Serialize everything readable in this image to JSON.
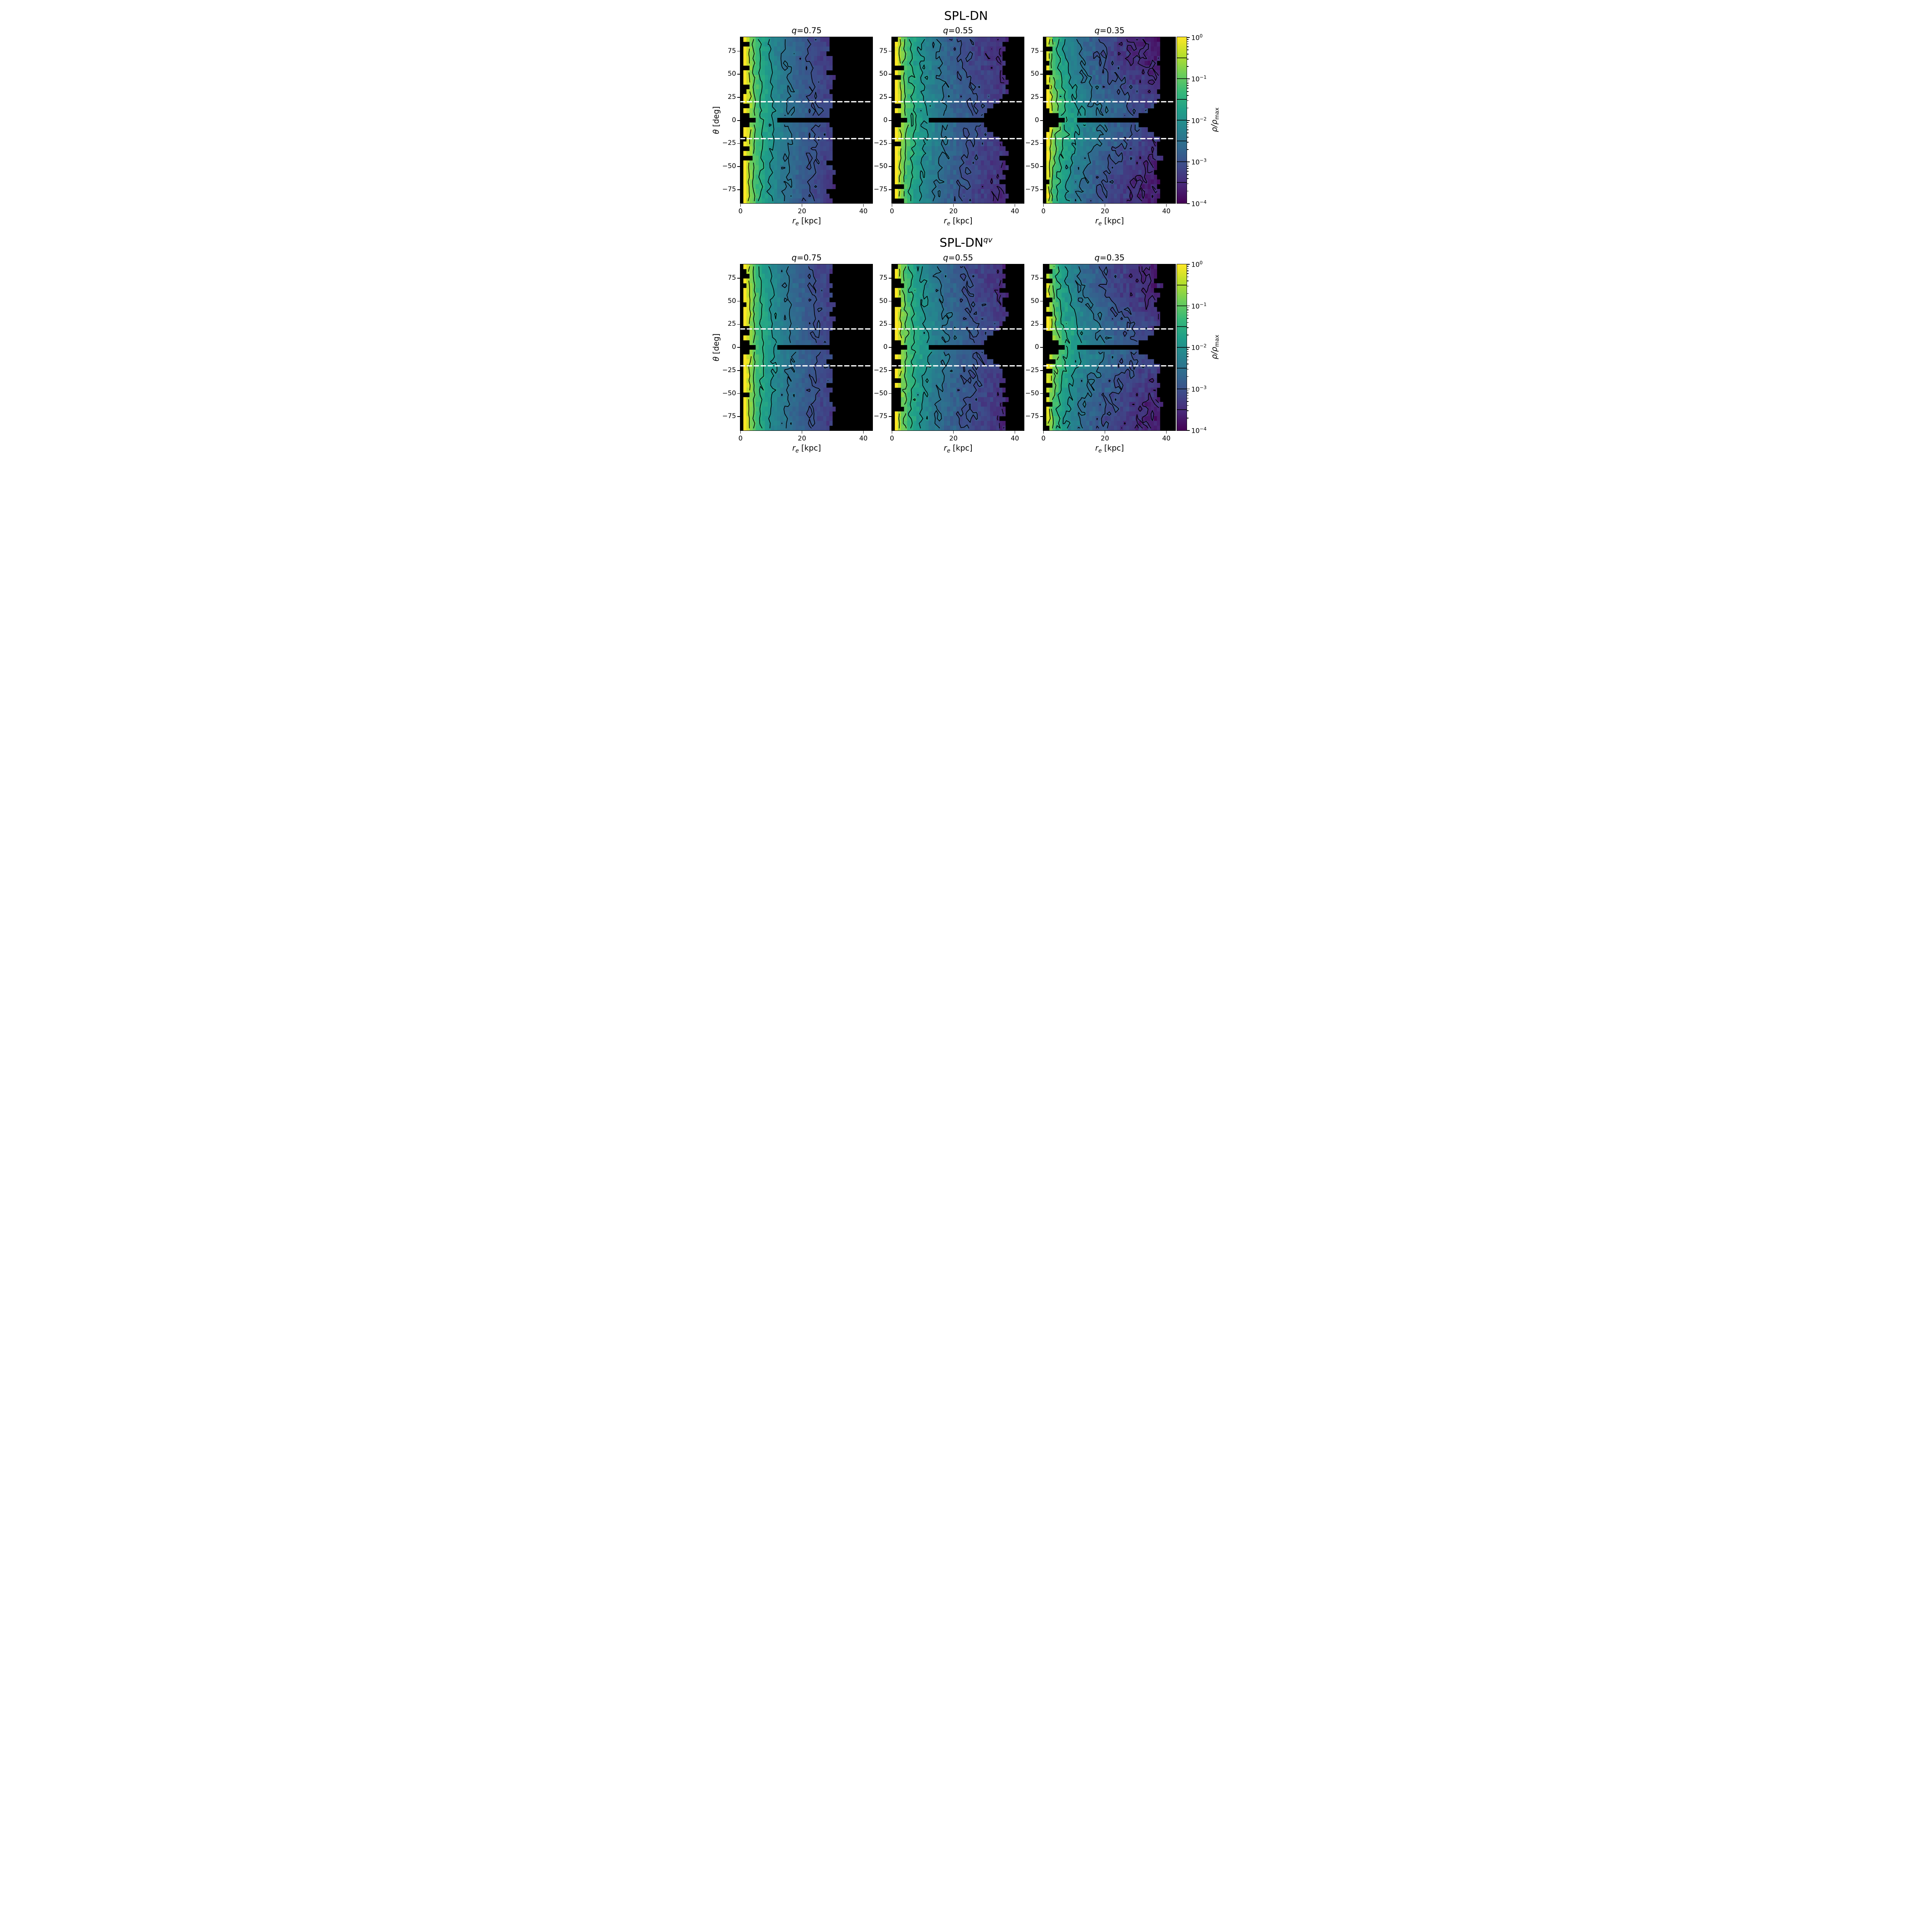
{
  "chart_data": {
    "type": "heatmap",
    "figure_titles": [
      {
        "base": "SPL-DN",
        "sup": ""
      },
      {
        "base": "SPL-DN",
        "sup": "qv"
      }
    ],
    "xlabel": {
      "sym": "r",
      "sub": "e",
      "rest": " [kpc]"
    },
    "ylabel": {
      "sym": "θ",
      "rest": " [deg]"
    },
    "colorbar": {
      "label_sym": "ρ/ρ",
      "label_sub": "max",
      "scale": "log",
      "vmin": 0.0001,
      "vmax": 1,
      "tick_base": "10",
      "tick_labels": [
        {
          "exp": 0,
          "text": "0"
        },
        {
          "exp": -1,
          "text": "−1"
        },
        {
          "exp": -2,
          "text": "−2"
        },
        {
          "exp": -3,
          "text": "−3"
        },
        {
          "exp": -4,
          "text": "−4"
        }
      ]
    },
    "x_range": [
      0,
      43
    ],
    "y_range": [
      -90,
      90
    ],
    "xticks": [
      {
        "v": 0,
        "label": "0"
      },
      {
        "v": 20,
        "label": "20"
      },
      {
        "v": 40,
        "label": "40"
      }
    ],
    "yticks": [
      {
        "v": 75,
        "label": "75"
      },
      {
        "v": 50,
        "label": "50"
      },
      {
        "v": 25,
        "label": "25"
      },
      {
        "v": 0,
        "label": "0"
      },
      {
        "v": -25,
        "label": "−25"
      },
      {
        "v": -50,
        "label": "−50"
      },
      {
        "v": -75,
        "label": "−75"
      }
    ],
    "dashed_lines_deg": [
      20,
      -20
    ],
    "contour_levels_log10": [
      -0.5,
      -1,
      -1.5,
      -2,
      -2.5,
      -3,
      -3.5
    ],
    "grid": {
      "nx": 43,
      "ny": 35
    },
    "viridis": [
      [
        68,
        1,
        84
      ],
      [
        72,
        40,
        120
      ],
      [
        62,
        74,
        137
      ],
      [
        49,
        104,
        142
      ],
      [
        38,
        130,
        142
      ],
      [
        31,
        158,
        137
      ],
      [
        53,
        183,
        121
      ],
      [
        109,
        205,
        89
      ],
      [
        180,
        222,
        44
      ],
      [
        253,
        231,
        37
      ]
    ],
    "rows": [
      {
        "title_index": 0,
        "panels": [
          {
            "label_sym": "q",
            "label_rest": "=0.75",
            "q": 0.75,
            "slope": 2.75,
            "r0": 2.0,
            "flatten": 0.9,
            "inner_base": 0.9,
            "inner_jag_frac": 0.3,
            "outer": 29.5,
            "outer_jag": 1.4,
            "bar": [
              12,
              28
            ],
            "bar_half_deg": 2.6,
            "wedge_tip": 27.5,
            "wedge_slope": 0.35,
            "center_wedge_r": 5,
            "center_wedge_slope": 2.5,
            "noise": 0.22,
            "seed": 3
          },
          {
            "label_sym": "q",
            "label_rest": "=0.55",
            "q": 0.55,
            "slope": 2.6,
            "r0": 1.9,
            "flatten": 0.84,
            "inner_base": 0.9,
            "inner_jag_frac": 0.3,
            "outer": 36.5,
            "outer_jag": 1.4,
            "bar": [
              12,
              29
            ],
            "bar_half_deg": 2.6,
            "wedge_tip": 28,
            "wedge_slope": 0.33,
            "center_wedge_r": 5,
            "center_wedge_slope": 2.5,
            "noise": 0.26,
            "seed": 7
          },
          {
            "label_sym": "q",
            "label_rest": "=0.35",
            "q": 0.35,
            "slope": 2.45,
            "r0": 1.8,
            "flatten": 0.62,
            "inner_base": 0.9,
            "inner_jag_frac": 0.3,
            "outer": 37.5,
            "outer_jag": 1.2,
            "bar": [
              10.5,
              29
            ],
            "bar_half_deg": 2.6,
            "wedge_tip": 28.5,
            "wedge_slope": 0.5,
            "center_wedge_r": 7,
            "center_wedge_slope": 2.2,
            "noise": 0.3,
            "seed": 11
          }
        ]
      },
      {
        "title_index": 1,
        "panels": [
          {
            "label_sym": "q",
            "label_rest": "=0.75",
            "q": 0.75,
            "slope": 2.72,
            "r0": 2.0,
            "flatten": 0.9,
            "inner_base": 0.9,
            "inner_jag_frac": 0.3,
            "outer": 29.5,
            "outer_jag": 1.4,
            "bar": [
              12,
              28
            ],
            "bar_half_deg": 2.6,
            "wedge_tip": 27.5,
            "wedge_slope": 0.35,
            "center_wedge_r": 5,
            "center_wedge_slope": 2.5,
            "noise": 0.22,
            "seed": 17
          },
          {
            "label_sym": "q",
            "label_rest": "=0.55",
            "q": 0.55,
            "slope": 2.56,
            "r0": 1.9,
            "flatten": 0.84,
            "inner_base": 0.9,
            "inner_jag_frac": 0.3,
            "outer": 36.5,
            "outer_jag": 1.4,
            "bar": [
              12,
              29
            ],
            "bar_half_deg": 2.6,
            "wedge_tip": 28,
            "wedge_slope": 0.33,
            "center_wedge_r": 5,
            "center_wedge_slope": 2.5,
            "noise": 0.26,
            "seed": 23
          },
          {
            "label_sym": "q",
            "label_rest": "=0.35",
            "q": 0.35,
            "slope": 2.42,
            "r0": 1.8,
            "flatten": 0.62,
            "inner_base": 0.9,
            "inner_jag_frac": 0.3,
            "outer": 37.5,
            "outer_jag": 1.2,
            "bar": [
              10.5,
              29
            ],
            "bar_half_deg": 2.6,
            "wedge_tip": 28.5,
            "wedge_slope": 0.5,
            "center_wedge_r": 7,
            "center_wedge_slope": 2.2,
            "noise": 0.3,
            "seed": 29
          }
        ]
      }
    ]
  }
}
